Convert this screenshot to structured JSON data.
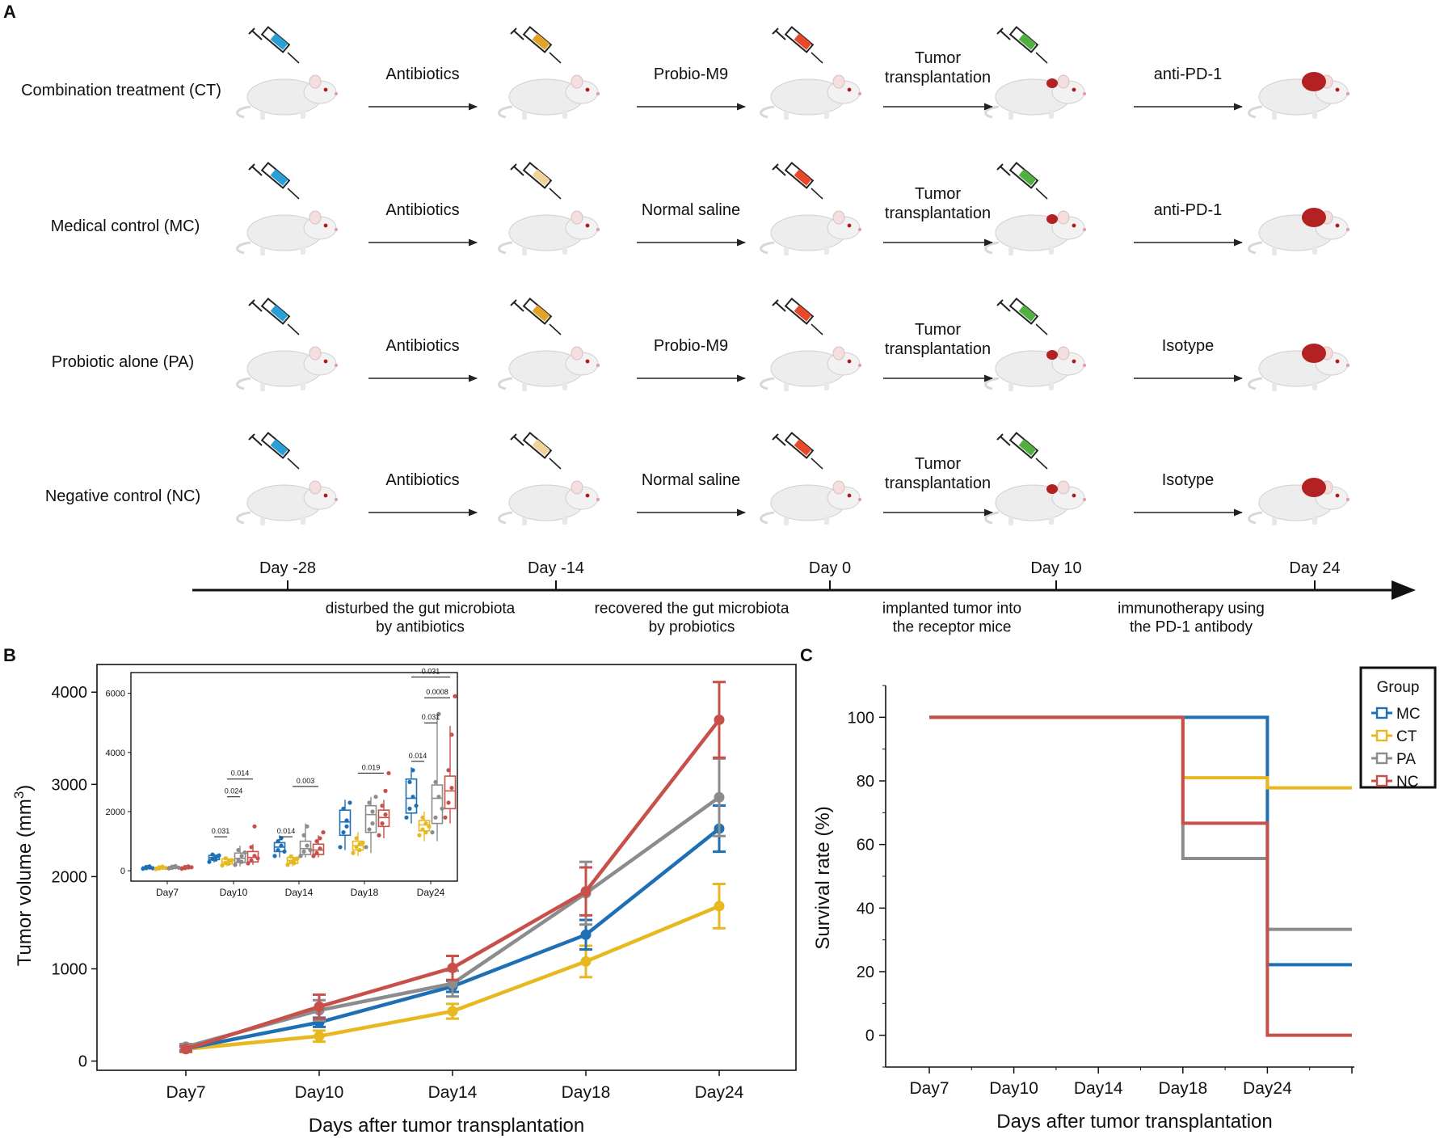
{
  "panel_labels": {
    "a": "A",
    "b": "B",
    "c": "C"
  },
  "colors": {
    "MC": "#1f6fb5",
    "CT": "#e8b820",
    "PA": "#8c8c8c",
    "NC": "#c8504a",
    "mouse": "#ededed",
    "tumor": "#b22222",
    "syringe": [
      "#2a9fd6",
      "#e3a32a",
      "#e64a2a",
      "#52b043"
    ]
  },
  "design": {
    "rows": [
      {
        "group": "Combination treatment (CT)",
        "steps": [
          "Antibiotics",
          "Probio-M9",
          "Tumor\ntransplantation",
          "anti-PD-1"
        ],
        "syringe_colors": [
          "#2a9fd6",
          "#e3a32a",
          "#e64a2a",
          "#52b043"
        ]
      },
      {
        "group": "Medical control (MC)",
        "steps": [
          "Antibiotics",
          "Normal saline",
          "Tumor\ntransplantation",
          "anti-PD-1"
        ],
        "syringe_colors": [
          "#2a9fd6",
          "#f0d39a",
          "#e64a2a",
          "#52b043"
        ]
      },
      {
        "group": "Probiotic alone (PA)",
        "steps": [
          "Antibiotics",
          "Probio-M9",
          "Tumor\ntransplantation",
          "Isotype"
        ],
        "syringe_colors": [
          "#2a9fd6",
          "#e3a32a",
          "#e64a2a",
          "#52b043"
        ]
      },
      {
        "group": "Negative control (NC)",
        "steps": [
          "Antibiotics",
          "Normal saline",
          "Tumor\ntransplantation",
          "Isotype"
        ],
        "syringe_colors": [
          "#2a9fd6",
          "#f0d39a",
          "#e64a2a",
          "#52b043"
        ]
      }
    ],
    "timeline_days": [
      "Day -28",
      "Day -14",
      "Day 0",
      "Day 10",
      "Day 24"
    ],
    "phases": [
      "disturbed the gut microbiota\nby antibiotics",
      "recovered the gut microbiota\nby probiotics",
      "implanted tumor into\nthe receptor mice",
      "immunotherapy using\nthe PD-1 antibody"
    ]
  },
  "chart_data": [
    {
      "id": "B",
      "type": "line",
      "title": "",
      "xlabel": "Days after tumor transplantation",
      "ylabel": "Tumor volume (mm³)",
      "ylim": [
        -100,
        4300
      ],
      "yticks": [
        0,
        1000,
        2000,
        3000,
        4000
      ],
      "categories": [
        "Day7",
        "Day10",
        "Day14",
        "Day18",
        "Day24"
      ],
      "series": [
        {
          "name": "CT",
          "values": [
            130,
            270,
            540,
            1080,
            1680
          ],
          "err": [
            30,
            60,
            80,
            170,
            240
          ]
        },
        {
          "name": "MC",
          "values": [
            135,
            420,
            810,
            1370,
            2520
          ],
          "err": [
            25,
            50,
            60,
            160,
            250
          ]
        },
        {
          "name": "PA",
          "values": [
            155,
            550,
            840,
            1820,
            2860
          ],
          "err": [
            30,
            110,
            140,
            340,
            420
          ]
        },
        {
          "name": "NC",
          "values": [
            130,
            590,
            1010,
            1840,
            3700
          ],
          "err": [
            30,
            130,
            130,
            260,
            410
          ]
        }
      ],
      "inset": {
        "type": "box",
        "ylim": [
          -350,
          6700
        ],
        "yticks": [
          0,
          2000,
          4000,
          6000
        ],
        "categories": [
          "Day7",
          "Day10",
          "Day14",
          "Day18",
          "Day24"
        ],
        "group_order": [
          "MC",
          "CT",
          "PA",
          "NC"
        ],
        "boxes": [
          [
            [
              60,
              80,
              100,
              130,
              160
            ],
            [
              50,
              70,
              100,
              120,
              170
            ],
            [
              70,
              90,
              110,
              140,
              170
            ],
            [
              60,
              80,
              110,
              130,
              160
            ]
          ],
          [
            [
              280,
              380,
              450,
              520,
              580
            ],
            [
              150,
              230,
              300,
              400,
              480
            ],
            [
              150,
              280,
              420,
              600,
              850
            ],
            [
              200,
              300,
              450,
              650,
              900
            ]
          ],
          [
            [
              450,
              650,
              800,
              950,
              1200
            ],
            [
              150,
              250,
              350,
              450,
              550
            ],
            [
              450,
              550,
              750,
              1000,
              1600
            ],
            [
              450,
              550,
              700,
              900,
              1200
            ]
          ],
          [
            [
              700,
              1200,
              1650,
              2050,
              2400
            ],
            [
              500,
              700,
              850,
              1000,
              1300
            ],
            [
              600,
              1300,
              1900,
              2200,
              2500
            ],
            [
              1100,
              1500,
              1800,
              2050,
              2400
            ]
          ],
          [
            [
              1600,
              1950,
              2450,
              3100,
              3500
            ],
            [
              1000,
              1350,
              1550,
              1700,
              2000
            ],
            [
              1000,
              1600,
              2450,
              2900,
              5300
            ],
            [
              1600,
              2100,
              2700,
              3200,
              4900
            ]
          ]
        ],
        "points": [
          [
            [
              70,
              90,
              110,
              130,
              150,
              85
            ],
            [
              60,
              80,
              100,
              120,
              140,
              95
            ],
            [
              80,
              100,
              120,
              140,
              160,
              105
            ],
            [
              70,
              90,
              110,
              130,
              150,
              120
            ]
          ],
          [
            [
              300,
              400,
              480,
              550,
              380,
              520
            ],
            [
              180,
              260,
              320,
              420,
              240,
              360
            ],
            [
              200,
              350,
              500,
              700,
              300,
              620
            ],
            [
              250,
              350,
              500,
              800,
              1500,
              420
            ]
          ],
          [
            [
              500,
              700,
              850,
              1000,
              1100,
              650
            ],
            [
              200,
              300,
              380,
              480,
              260,
              420
            ],
            [
              500,
              650,
              850,
              1200,
              1500,
              700
            ],
            [
              500,
              600,
              750,
              1000,
              1100,
              1300
            ]
          ],
          [
            [
              800,
              1300,
              1700,
              2100,
              1500,
              2300
            ],
            [
              600,
              800,
              900,
              1100,
              700,
              950
            ],
            [
              800,
              1400,
              2000,
              2300,
              1600,
              2500
            ],
            [
              1200,
              1600,
              1900,
              2200,
              2700,
              3300
            ]
          ],
          [
            [
              1800,
              2100,
              2500,
              3000,
              3400,
              2200
            ],
            [
              1200,
              1400,
              1600,
              1800,
              1300,
              1500
            ],
            [
              1300,
              1800,
              2500,
              3000,
              5300,
              2100
            ],
            [
              1800,
              2300,
              2800,
              3400,
              4600,
              5900
            ]
          ]
        ],
        "significance": [
          {
            "day": 1,
            "from": 0,
            "to": 1,
            "y": 1150,
            "label": "0.031"
          },
          {
            "day": 1,
            "from": 1,
            "to": 2,
            "y": 2500,
            "label": "0.024"
          },
          {
            "day": 1,
            "from": 1,
            "to": 3,
            "y": 3100,
            "label": "0.014"
          },
          {
            "day": 2,
            "from": 0,
            "to": 1,
            "y": 1150,
            "label": "0.014"
          },
          {
            "day": 2,
            "from": 1,
            "to": 3,
            "y": 2850,
            "label": "0.003"
          },
          {
            "day": 3,
            "from": 1,
            "to": 3,
            "y": 3300,
            "label": "0.019"
          },
          {
            "day": 4,
            "from": 0,
            "to": 1,
            "y": 3700,
            "label": "0.014"
          },
          {
            "day": 4,
            "from": 1,
            "to": 2,
            "y": 5000,
            "label": "0.031"
          },
          {
            "day": 4,
            "from": 1,
            "to": 3,
            "y": 5850,
            "label": "0.0008"
          },
          {
            "day": 4,
            "from": 0,
            "to": 3,
            "y": 6550,
            "label": "0.031"
          }
        ]
      }
    },
    {
      "id": "C",
      "type": "line",
      "title": "",
      "xlabel": "Days after tumor transplantation",
      "ylabel": "Survival rate (%)",
      "ylim": [
        -10,
        110
      ],
      "yticks": [
        0,
        20,
        40,
        60,
        80,
        100
      ],
      "categories": [
        "Day7",
        "Day10",
        "Day14",
        "Day18",
        "Day24"
      ],
      "x_positions": [
        7,
        10,
        13,
        16,
        19
      ],
      "x_end": 22,
      "legend": {
        "title": "Group",
        "entries": [
          "MC",
          "CT",
          "PA",
          "NC"
        ],
        "position": "top-right"
      },
      "series": [
        {
          "name": "MC",
          "steps": [
            [
              7,
              100
            ],
            [
              19,
              22.2
            ]
          ]
        },
        {
          "name": "CT",
          "steps": [
            [
              7,
              100
            ],
            [
              16,
              81
            ],
            [
              19,
              77.8
            ]
          ]
        },
        {
          "name": "PA",
          "steps": [
            [
              7,
              100
            ],
            [
              16,
              55.6
            ],
            [
              19,
              33.3
            ]
          ]
        },
        {
          "name": "NC",
          "steps": [
            [
              7,
              100
            ],
            [
              16,
              66.7
            ],
            [
              19,
              0
            ]
          ]
        }
      ]
    }
  ]
}
